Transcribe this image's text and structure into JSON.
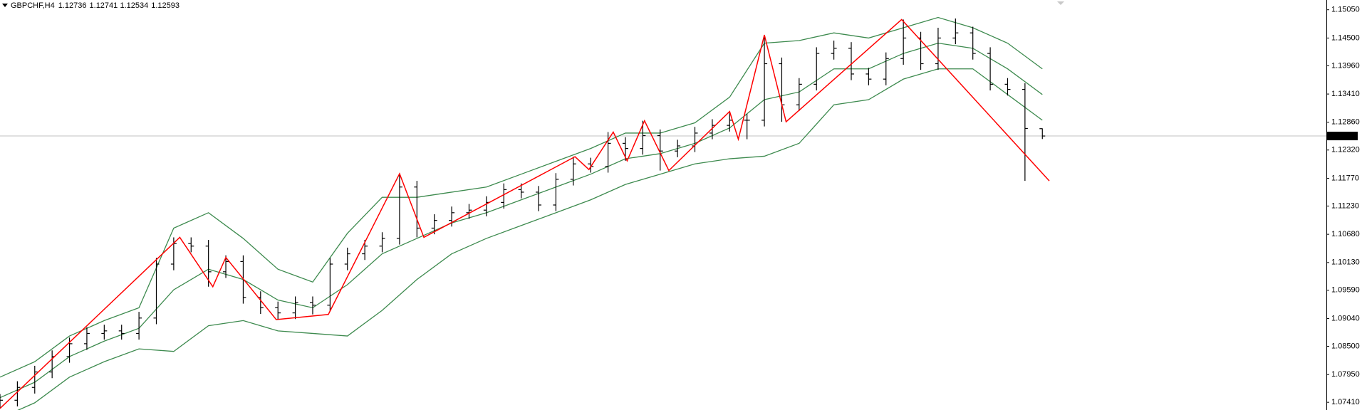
{
  "chart_data": {
    "type": "ohlc",
    "title": "GBPCHF,H4",
    "color": "#000000",
    "open": [
      1.0735,
      1.0745,
      1.077,
      1.08,
      1.083,
      1.0855,
      1.0875,
      1.088,
      1.0875,
      1.0905,
      1.101,
      1.105,
      1.1045,
      1.0995,
      1.1015,
      1.0945,
      1.0925,
      1.0915,
      1.0935,
      1.093,
      1.101,
      1.103,
      1.1045,
      1.106,
      1.116,
      1.108,
      1.1095,
      1.111,
      1.1115,
      1.113,
      1.1155,
      1.115,
      1.1125,
      1.1175,
      1.1205,
      1.12,
      1.1245,
      1.1235,
      1.126,
      1.123,
      1.124,
      1.1265,
      1.128,
      1.129,
      1.129,
      1.14,
      1.132,
      1.136,
      1.142,
      1.143,
      1.138,
      1.137,
      1.141,
      1.145,
      1.14,
      1.145,
      1.146,
      1.142,
      1.136,
      1.135,
      1.12736
    ],
    "high": [
      1.0757,
      1.0782,
      1.0812,
      1.0842,
      1.0867,
      1.0887,
      1.0892,
      1.0892,
      1.0917,
      1.1022,
      1.1062,
      1.1062,
      1.1057,
      1.1027,
      1.1027,
      1.0957,
      1.0937,
      1.0947,
      1.0947,
      1.1022,
      1.1042,
      1.1057,
      1.1072,
      1.1186,
      1.1172,
      1.1107,
      1.1122,
      1.1127,
      1.1142,
      1.1167,
      1.1167,
      1.1162,
      1.1187,
      1.1219,
      1.1217,
      1.1267,
      1.1257,
      1.1289,
      1.1272,
      1.1252,
      1.1277,
      1.1292,
      1.1307,
      1.1302,
      1.1456,
      1.1412,
      1.1372,
      1.1432,
      1.1445,
      1.1442,
      1.1392,
      1.1422,
      1.1486,
      1.1462,
      1.147,
      1.1488,
      1.1472,
      1.1432,
      1.1372,
      1.1362,
      1.12741
    ],
    "low": [
      1.0729,
      1.0733,
      1.0758,
      1.0788,
      1.0818,
      1.0843,
      1.0863,
      1.0863,
      1.0863,
      1.0893,
      1.0998,
      1.1033,
      1.0966,
      1.0983,
      1.0933,
      1.0913,
      1.0902,
      1.0903,
      1.0912,
      1.0918,
      1.0998,
      1.1018,
      1.1033,
      1.1048,
      1.1062,
      1.1068,
      1.1083,
      1.1098,
      1.1103,
      1.1118,
      1.1138,
      1.1113,
      1.1113,
      1.1163,
      1.1188,
      1.1188,
      1.1211,
      1.1223,
      1.1192,
      1.1218,
      1.1228,
      1.1253,
      1.1268,
      1.1253,
      1.1278,
      1.1287,
      1.1308,
      1.1348,
      1.1408,
      1.1368,
      1.1358,
      1.1358,
      1.1398,
      1.1388,
      1.1388,
      1.1438,
      1.1408,
      1.1348,
      1.1338,
      1.1172,
      1.12534
    ],
    "close": [
      1.0745,
      1.077,
      1.08,
      1.083,
      1.0855,
      1.0875,
      1.088,
      1.0875,
      1.0905,
      1.101,
      1.105,
      1.1045,
      1.0995,
      1.1015,
      1.0945,
      1.0925,
      1.0915,
      1.0935,
      1.093,
      1.101,
      1.103,
      1.1045,
      1.106,
      1.116,
      1.108,
      1.1095,
      1.111,
      1.1115,
      1.113,
      1.1155,
      1.115,
      1.1125,
      1.1175,
      1.1205,
      1.12,
      1.1245,
      1.1235,
      1.126,
      1.123,
      1.124,
      1.1265,
      1.128,
      1.129,
      1.129,
      1.14,
      1.132,
      1.136,
      1.142,
      1.143,
      1.138,
      1.137,
      1.141,
      1.145,
      1.14,
      1.145,
      1.146,
      1.142,
      1.136,
      1.135,
      1.1274,
      1.12593
    ],
    "bands": {
      "color": "#3d8a4e",
      "x": [
        0,
        2,
        4,
        6,
        8,
        10,
        12,
        14,
        16,
        18,
        20,
        22,
        24,
        26,
        28,
        30,
        32,
        34,
        36,
        38,
        40,
        42,
        44,
        46,
        48,
        50,
        52,
        54,
        56,
        58,
        60
      ],
      "upper": [
        1.079,
        1.082,
        1.087,
        1.09,
        1.0925,
        1.108,
        1.111,
        1.106,
        1.1,
        1.0975,
        1.107,
        1.114,
        1.114,
        1.115,
        1.116,
        1.1185,
        1.121,
        1.1235,
        1.1265,
        1.1265,
        1.1285,
        1.1335,
        1.144,
        1.1445,
        1.146,
        1.145,
        1.147,
        1.149,
        1.147,
        1.144,
        1.139
      ],
      "middle": [
        1.075,
        1.078,
        1.083,
        1.086,
        1.0885,
        1.096,
        1.1,
        1.098,
        1.094,
        1.0925,
        1.097,
        1.103,
        1.106,
        1.109,
        1.111,
        1.1135,
        1.116,
        1.1185,
        1.1215,
        1.1225,
        1.1245,
        1.1275,
        1.133,
        1.1345,
        1.139,
        1.139,
        1.142,
        1.144,
        1.143,
        1.139,
        1.134
      ],
      "lower": [
        1.071,
        1.074,
        1.079,
        1.082,
        1.0845,
        1.084,
        1.089,
        1.09,
        1.088,
        1.0875,
        1.087,
        1.092,
        1.098,
        1.103,
        1.106,
        1.1085,
        1.111,
        1.1135,
        1.1165,
        1.1185,
        1.1205,
        1.1215,
        1.122,
        1.1245,
        1.132,
        1.133,
        1.137,
        1.139,
        1.139,
        1.134,
        1.129
      ]
    },
    "zigzag": {
      "color": "#ff0000",
      "x": [
        0,
        10.35,
        12.25,
        13,
        15.9,
        18.9,
        23,
        24.4,
        33.1,
        33.9,
        35.3,
        36.1,
        37.1,
        38.5,
        42,
        42.5,
        44,
        45.25,
        51.9,
        60.4
      ],
      "values": [
        1.0729,
        1.1062,
        1.0966,
        1.1023,
        1.0902,
        1.0912,
        1.1186,
        1.1062,
        1.1219,
        1.1194,
        1.1267,
        1.1211,
        1.1289,
        1.1192,
        1.1307,
        1.1253,
        1.1456,
        1.1287,
        1.1486,
        1.1172
      ]
    },
    "xlim": [
      0,
      76.35
    ],
    "ylim": [
      1.0726,
      1.1524
    ],
    "yticks": [
      {
        "value": 1.1505,
        "label": "1.15050"
      },
      {
        "value": 1.145,
        "label": "1.14500"
      },
      {
        "value": 1.1396,
        "label": "1.13960"
      },
      {
        "value": 1.1341,
        "label": "1.13410"
      },
      {
        "value": 1.1286,
        "label": "1.12860"
      },
      {
        "value": 1.1232,
        "label": "1.12320"
      },
      {
        "value": 1.1177,
        "label": "1.11770"
      },
      {
        "value": 1.1123,
        "label": "1.11230"
      },
      {
        "value": 1.1068,
        "label": "1.10680"
      },
      {
        "value": 1.1013,
        "label": "1.10130"
      },
      {
        "value": 1.0959,
        "label": "1.09590"
      },
      {
        "value": 1.0904,
        "label": "1.09040"
      },
      {
        "value": 1.085,
        "label": "1.08500"
      },
      {
        "value": 1.0795,
        "label": "1.07950"
      },
      {
        "value": 1.0741,
        "label": "1.07410"
      }
    ]
  }
}
